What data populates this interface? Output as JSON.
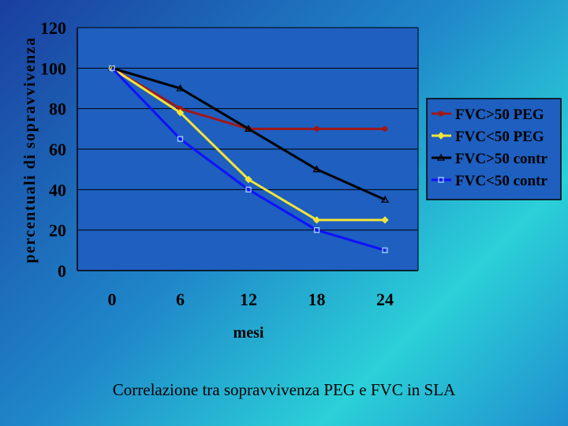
{
  "caption": "Correlazione tra sopravvivenza PEG e FVC in SLA",
  "chart_data": {
    "type": "line",
    "title": "",
    "xlabel": "mesi",
    "ylabel": "percentuali di sopravvivenza",
    "categories": [
      "0",
      "6",
      "12",
      "18",
      "24"
    ],
    "ylim": [
      0,
      120
    ],
    "yticks": [
      0,
      20,
      40,
      60,
      80,
      100,
      120
    ],
    "grid": true,
    "legend_position": "right",
    "series": [
      {
        "name": "FVC>50 PEG",
        "values": [
          100,
          80,
          70,
          70,
          70
        ],
        "color": "#a01818",
        "marker": "circle"
      },
      {
        "name": "FVC<50 PEG",
        "values": [
          100,
          78,
          45,
          25,
          25
        ],
        "color": "#f2e43a",
        "marker": "diamond"
      },
      {
        "name": "FVC>50 contr",
        "values": [
          100,
          90,
          70,
          50,
          35
        ],
        "color": "#000000",
        "marker": "triangle"
      },
      {
        "name": "FVC<50 contr",
        "values": [
          100,
          65,
          40,
          20,
          10
        ],
        "color": "#1010ff",
        "marker": "square"
      }
    ]
  }
}
